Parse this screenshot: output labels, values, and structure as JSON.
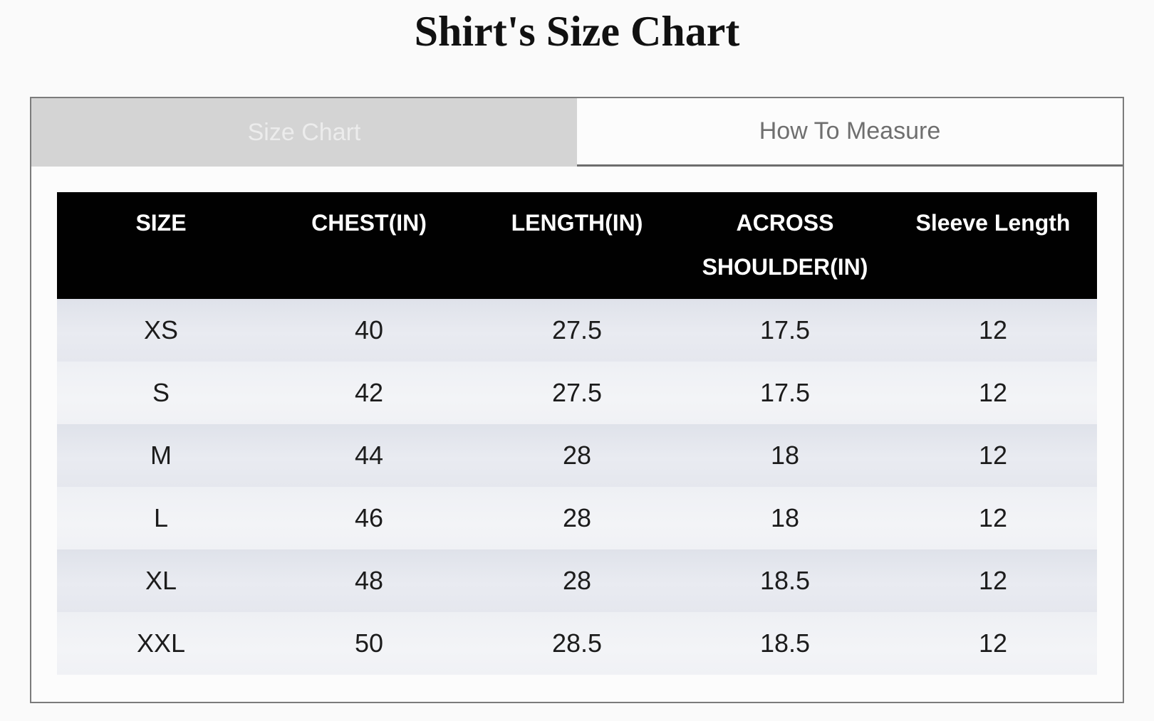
{
  "page": {
    "title": "Shirt's Size Chart"
  },
  "tabs": [
    {
      "label": "Size Chart",
      "active": true
    },
    {
      "label": "How To Measure",
      "active": false
    }
  ],
  "chart_data": {
    "type": "table",
    "title": "Shirt's Size Chart",
    "columns": [
      "SIZE",
      "CHEST(IN)",
      "LENGTH(IN)",
      "ACROSS SHOULDER(IN)",
      "Sleeve Length"
    ],
    "rows": [
      [
        "XS",
        "40",
        "27.5",
        "17.5",
        "12"
      ],
      [
        "S",
        "42",
        "27.5",
        "17.5",
        "12"
      ],
      [
        "M",
        "44",
        "28",
        "18",
        "12"
      ],
      [
        "L",
        "46",
        "28",
        "18",
        "12"
      ],
      [
        "XL",
        "48",
        "28",
        "18.5",
        "12"
      ],
      [
        "XXL",
        "50",
        "28.5",
        "18.5",
        "12"
      ]
    ]
  },
  "colors": {
    "page_bg": "#fafafa",
    "widget_bg": "#fcfcfc",
    "widget_border": "#7b7b7b",
    "tab_active_bg": "#d4d4d4",
    "tab_active_text": "#ececec",
    "tab_inactive_text": "#6f6f6f",
    "table_header_bg": "#010101",
    "table_header_text": "#ffffff",
    "row_dark": "#e5e7ee",
    "row_light": "#f0f1f5",
    "cell_text": "#1c1c1c"
  }
}
